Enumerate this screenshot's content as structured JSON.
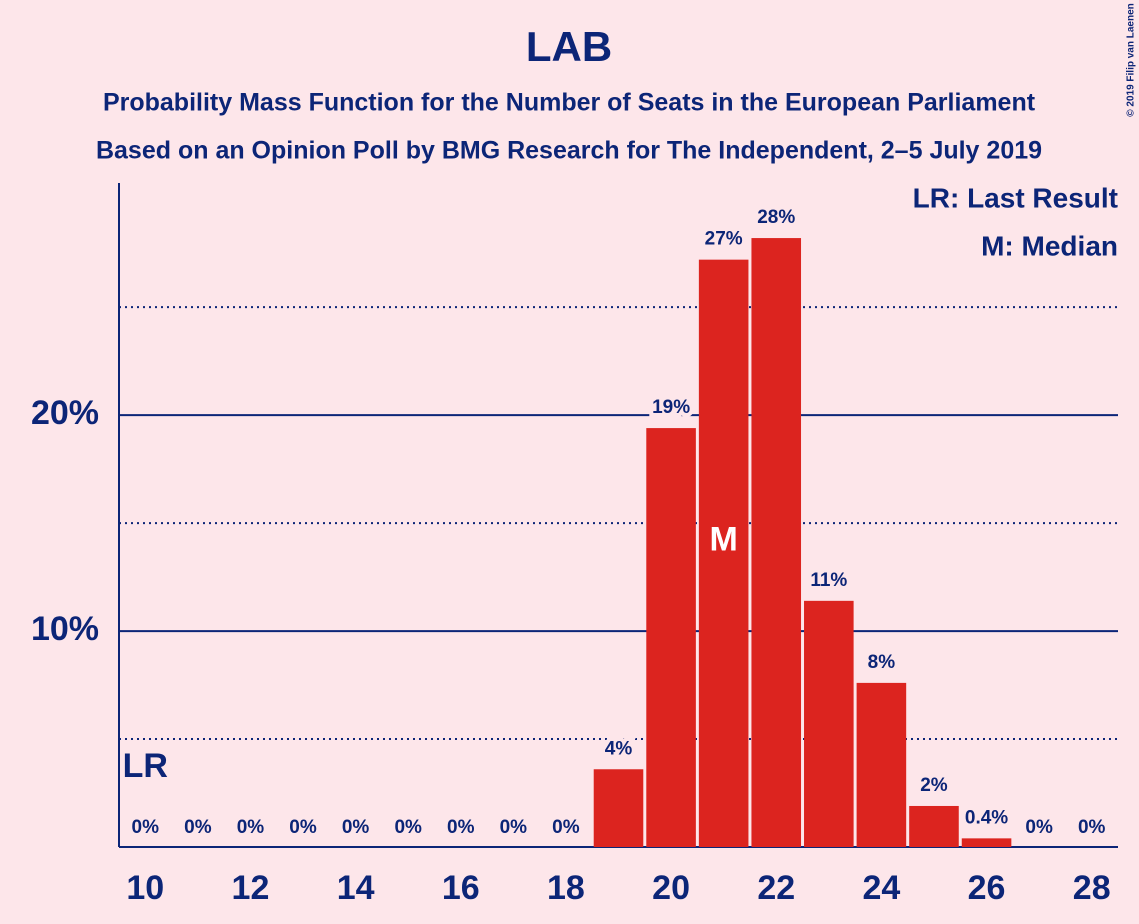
{
  "chart_data": {
    "type": "bar",
    "title": "LAB",
    "subtitle": [
      "Probability Mass Function for the Number of Seats in the European Parliament",
      "Based on an Opinion Poll by BMG Research for The Independent, 2–5 July 2019"
    ],
    "x": [
      10,
      11,
      12,
      13,
      14,
      15,
      16,
      17,
      18,
      19,
      20,
      21,
      22,
      23,
      24,
      25,
      26,
      27,
      28
    ],
    "values": [
      0,
      0,
      0,
      0,
      0,
      0,
      0,
      0,
      0,
      3.6,
      19.4,
      27.2,
      28.2,
      11.4,
      7.6,
      1.9,
      0.4,
      0,
      0
    ],
    "value_labels": [
      "0%",
      "0%",
      "0%",
      "0%",
      "0%",
      "0%",
      "0%",
      "0%",
      "0%",
      "4%",
      "19%",
      "27%",
      "28%",
      "11%",
      "8%",
      "2%",
      "0.4%",
      "0%",
      "0%"
    ],
    "color": "#dc241f",
    "xlim": [
      9.5,
      28.5
    ],
    "xticks": [
      10,
      12,
      14,
      16,
      18,
      20,
      22,
      24,
      26,
      28
    ],
    "ylim": [
      0,
      30.75
    ],
    "yticks": [
      {
        "value": 10,
        "label": "10%"
      },
      {
        "value": 20,
        "label": "20%"
      }
    ],
    "minor_yticks": [
      5,
      15,
      25
    ],
    "grid": true,
    "last_result": {
      "x": 10,
      "label": "LR"
    },
    "median": {
      "x": 21,
      "label": "M"
    },
    "legend": [
      "LR: Last Result",
      "M: Median"
    ],
    "credit": "© 2019 Filip van Laenen"
  }
}
